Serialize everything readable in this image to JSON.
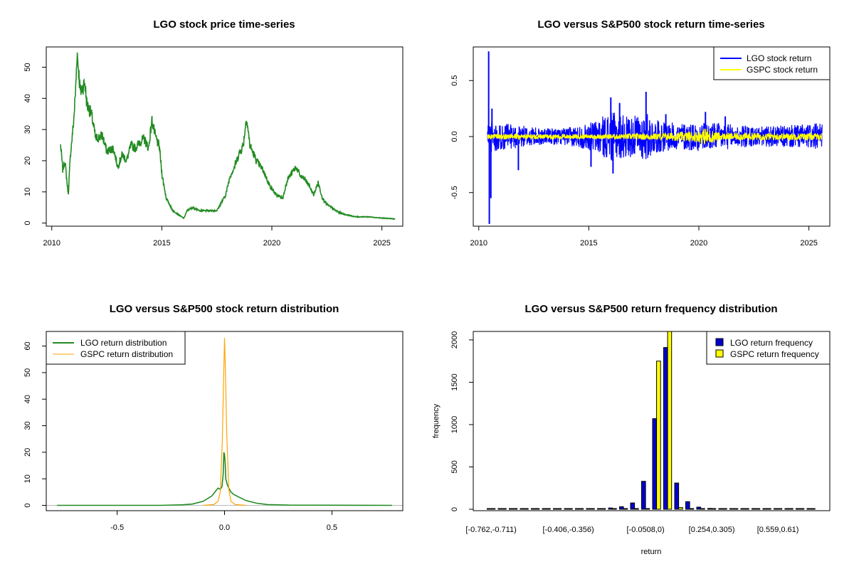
{
  "colors": {
    "lgo_price": "#228B22",
    "lgo_return": "#0000FF",
    "gspc_return": "#FFFF00",
    "lgo_density": "#228B22",
    "gspc_density": "#FFA500",
    "lgo_bar": "#0000CD",
    "gspc_bar": "#FFFF00"
  },
  "chart_data": [
    {
      "type": "line",
      "title": "LGO stock price time-series",
      "xlabel": "",
      "ylabel": "",
      "xlim": [
        2009.75,
        2025.95
      ],
      "ylim": [
        -1,
        56.5
      ],
      "x_ticks": [
        2010,
        2015,
        2020,
        2025
      ],
      "x_tick_labels": [
        "2010",
        "2015",
        "2020",
        "2025"
      ],
      "y_ticks": [
        0,
        10,
        20,
        30,
        40,
        50
      ],
      "y_tick_labels": [
        "0",
        "10",
        "20",
        "30",
        "40",
        "50"
      ],
      "series": [
        {
          "name": "LGO price",
          "x": [
            2010.4,
            2010.5,
            2010.6,
            2010.75,
            2010.85,
            2011.0,
            2011.1,
            2011.15,
            2011.3,
            2011.5,
            2011.6,
            2011.8,
            2012.0,
            2012.3,
            2012.5,
            2012.8,
            2013.0,
            2013.2,
            2013.4,
            2013.6,
            2013.8,
            2014.0,
            2014.2,
            2014.4,
            2014.55,
            2014.7,
            2014.9,
            2015.0,
            2015.2,
            2015.5,
            2015.8,
            2016.0,
            2016.15,
            2016.4,
            2016.7,
            2017.0,
            2017.5,
            2017.9,
            2018.1,
            2018.3,
            2018.5,
            2018.7,
            2018.85,
            2019.0,
            2019.3,
            2019.6,
            2019.9,
            2020.2,
            2020.5,
            2020.7,
            2020.9,
            2021.1,
            2021.3,
            2021.5,
            2021.7,
            2021.9,
            2022.1,
            2022.3,
            2022.5,
            2022.7,
            2022.9,
            2023.2,
            2023.5,
            2023.8,
            2024.1,
            2024.4,
            2024.7,
            2025.0,
            2025.3,
            2025.6
          ],
          "values": [
            25,
            17,
            20,
            9,
            22,
            33,
            45,
            55,
            42,
            45,
            38,
            35,
            27,
            28,
            23,
            24,
            18,
            22,
            20,
            25,
            24,
            26,
            27,
            24,
            33,
            28,
            24,
            16,
            8,
            4,
            2.5,
            1.5,
            4,
            5,
            4,
            4,
            4,
            9,
            15,
            18,
            22,
            25,
            34,
            25,
            20,
            17,
            12,
            9,
            8,
            14,
            16,
            18,
            15,
            14,
            12,
            9,
            13,
            8,
            6,
            5,
            4,
            3,
            2.5,
            2,
            2,
            2,
            1.8,
            1.6,
            1.5,
            1.3
          ]
        }
      ]
    },
    {
      "type": "line",
      "title": "LGO versus S&P500 stock return time-series",
      "xlabel": "",
      "ylabel": "",
      "xlim": [
        2009.75,
        2025.95
      ],
      "ylim": [
        -0.8,
        0.8
      ],
      "x_ticks": [
        2010,
        2015,
        2020,
        2025
      ],
      "x_tick_labels": [
        "2010",
        "2015",
        "2020",
        "2025"
      ],
      "y_ticks": [
        -0.5,
        0.0,
        0.5
      ],
      "y_tick_labels": [
        "-0.5",
        "0.0",
        "0.5"
      ],
      "legend": {
        "position": "top-right",
        "entries": [
          "LGO stock return",
          "GSPC stock return"
        ]
      },
      "series": [
        {
          "name": "LGO stock return",
          "envelope_x": [
            2010.4,
            2011.0,
            2012.0,
            2013.0,
            2014.0,
            2015.0,
            2016.0,
            2017.0,
            2017.6,
            2018.0,
            2019.0,
            2020.0,
            2021.0,
            2022.0,
            2023.0,
            2024.0,
            2025.6
          ],
          "envelope_values": [
            0.15,
            0.12,
            0.1,
            0.07,
            0.08,
            0.12,
            0.22,
            0.18,
            0.22,
            0.15,
            0.12,
            0.13,
            0.12,
            0.1,
            0.09,
            0.1,
            0.12
          ],
          "spikes": [
            [
              2010.45,
              0.76
            ],
            [
              2010.48,
              -0.78
            ],
            [
              2010.55,
              -0.55
            ],
            [
              2010.6,
              0.25
            ],
            [
              2011.8,
              -0.3
            ],
            [
              2015.1,
              -0.27
            ],
            [
              2016.0,
              0.35
            ],
            [
              2016.1,
              -0.33
            ],
            [
              2016.4,
              0.3
            ],
            [
              2017.6,
              0.4
            ],
            [
              2018.5,
              0.2
            ],
            [
              2020.3,
              0.22
            ],
            [
              2021.2,
              0.18
            ]
          ]
        },
        {
          "name": "GSPC stock return",
          "envelope_x": [
            2010.4,
            2012.0,
            2015.0,
            2018.0,
            2020.0,
            2020.3,
            2021.0,
            2022.0,
            2025.6
          ],
          "envelope_values": [
            0.025,
            0.025,
            0.02,
            0.03,
            0.05,
            0.08,
            0.03,
            0.035,
            0.03
          ]
        }
      ]
    },
    {
      "type": "line",
      "title": "LGO versus S&P500 stock return distribution",
      "xlabel": "",
      "ylabel": "",
      "xlim": [
        -0.83,
        0.83
      ],
      "ylim": [
        -2,
        65.5
      ],
      "x_ticks": [
        -0.5,
        0.0,
        0.5
      ],
      "x_tick_labels": [
        "-0.5",
        "0.0",
        "0.5"
      ],
      "y_ticks": [
        0,
        10,
        20,
        30,
        40,
        50,
        60
      ],
      "y_tick_labels": [
        "0",
        "10",
        "20",
        "30",
        "40",
        "50",
        "60"
      ],
      "legend": {
        "position": "top-left",
        "entries": [
          "LGO return distribution",
          "GSPC return distribution"
        ]
      },
      "series": [
        {
          "name": "LGO return distribution",
          "x": [
            -0.78,
            -0.3,
            -0.2,
            -0.15,
            -0.1,
            -0.06,
            -0.04,
            -0.03,
            -0.02,
            -0.012,
            -0.006,
            -0.003,
            0.0,
            0.003,
            0.006,
            0.012,
            0.02,
            0.03,
            0.045,
            0.07,
            0.1,
            0.15,
            0.2,
            0.3,
            0.78
          ],
          "values": [
            0,
            0,
            0.2,
            0.5,
            1.5,
            3.5,
            5.5,
            6.5,
            6.0,
            7.0,
            12,
            20,
            19,
            16,
            10,
            8,
            6.5,
            5,
            4,
            3,
            1.8,
            0.8,
            0.3,
            0.1,
            0
          ]
        },
        {
          "name": "GSPC return distribution",
          "x": [
            -0.1,
            -0.05,
            -0.03,
            -0.02,
            -0.01,
            -0.005,
            0.0,
            0.005,
            0.01,
            0.02,
            0.03,
            0.05,
            0.1
          ],
          "values": [
            0,
            0.3,
            1.5,
            5,
            25,
            45,
            63,
            48,
            28,
            6,
            1.5,
            0.3,
            0
          ]
        }
      ]
    },
    {
      "type": "bar",
      "title": "LGO versus S&P500 return frequency distribution",
      "xlabel": "return",
      "ylabel": "frequency",
      "ylim": [
        0,
        2100
      ],
      "y_ticks": [
        0,
        500,
        1000,
        1500,
        2000
      ],
      "y_tick_labels": [
        "0",
        "500",
        "1000",
        "1500",
        "2000"
      ],
      "category_labels": [
        "[-0.762,-0.711)",
        "[-0.406,-0.356)",
        "[-0.0508,0)",
        "[0.254,0.305)",
        "[0.559,0.61)"
      ],
      "category_label_index": [
        0,
        7,
        14,
        20,
        26
      ],
      "legend": {
        "position": "top-right",
        "entries": [
          "LGO return frequency",
          "GSPC return frequency"
        ]
      },
      "series": [
        {
          "name": "LGO return frequency",
          "values": [
            0,
            0,
            0,
            0,
            0,
            0,
            0,
            0,
            5,
            3,
            8,
            15,
            30,
            75,
            330,
            1070,
            1910,
            310,
            90,
            25,
            10,
            5,
            3,
            2,
            2,
            1,
            1,
            0,
            0,
            0
          ]
        },
        {
          "name": "GSPC return frequency",
          "values": [
            0,
            0,
            0,
            0,
            0,
            0,
            0,
            0,
            0,
            0,
            0,
            0,
            0,
            2,
            5,
            1750,
            2100,
            20,
            2,
            0,
            0,
            0,
            0,
            0,
            0,
            0,
            0,
            0,
            0,
            0
          ]
        }
      ]
    }
  ]
}
